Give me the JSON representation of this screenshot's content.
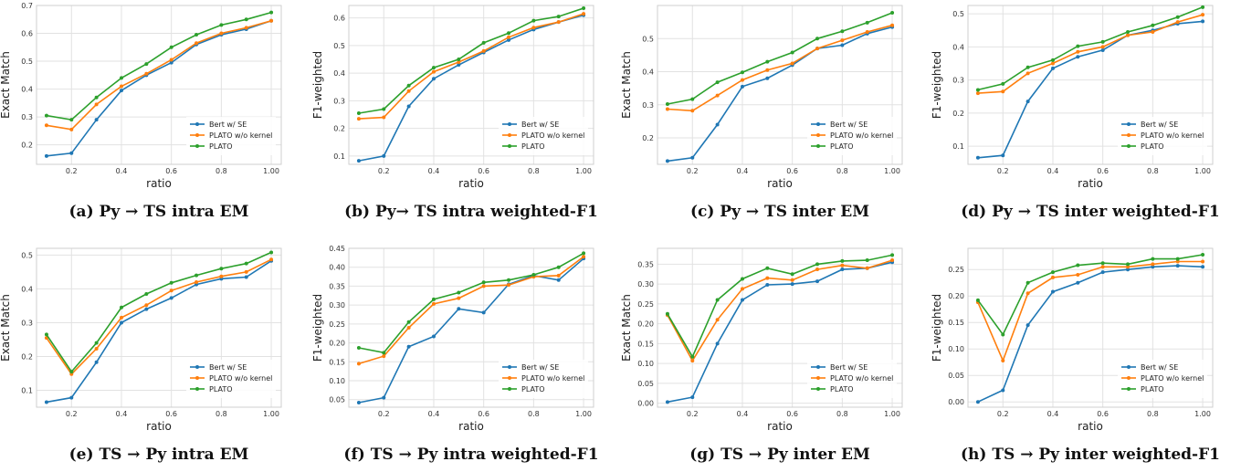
{
  "chart_data": [
    {
      "type": "line",
      "caption": "(a) Py → TS intra EM",
      "xlabel": "ratio",
      "ylabel": "Exact Match",
      "ylim": [
        0.13,
        0.7
      ],
      "yticks": [
        0.2,
        0.3,
        0.4,
        0.5,
        0.6,
        0.7
      ],
      "x": [
        0.1,
        0.2,
        0.3,
        0.4,
        0.5,
        0.6,
        0.7,
        0.8,
        0.9,
        1.0
      ],
      "series": [
        {
          "name": "Bert w/ SE",
          "color": "#1f77b4",
          "values": [
            0.16,
            0.17,
            0.29,
            0.395,
            0.45,
            0.495,
            0.56,
            0.595,
            0.615,
            0.645
          ]
        },
        {
          "name": "PLATO w/o kernel",
          "color": "#ff7f0e",
          "values": [
            0.27,
            0.255,
            0.345,
            0.41,
            0.455,
            0.505,
            0.565,
            0.6,
            0.62,
            0.645
          ]
        },
        {
          "name": "PLATO",
          "color": "#2ca02c",
          "values": [
            0.305,
            0.29,
            0.37,
            0.44,
            0.49,
            0.55,
            0.595,
            0.63,
            0.65,
            0.675
          ]
        }
      ],
      "legend": "lower-right",
      "grid": true
    },
    {
      "type": "line",
      "caption": "(b) Py→ TS intra weighted-F1",
      "xlabel": "ratio",
      "ylabel": "F1-weighted",
      "ylim": [
        0.07,
        0.645
      ],
      "yticks": [
        0.1,
        0.2,
        0.3,
        0.4,
        0.5,
        0.6
      ],
      "x": [
        0.1,
        0.2,
        0.3,
        0.4,
        0.5,
        0.6,
        0.7,
        0.8,
        0.9,
        1.0
      ],
      "series": [
        {
          "name": "Bert w/ SE",
          "color": "#1f77b4",
          "values": [
            0.083,
            0.1,
            0.28,
            0.38,
            0.43,
            0.475,
            0.52,
            0.558,
            0.585,
            0.61
          ]
        },
        {
          "name": "PLATO w/o kernel",
          "color": "#ff7f0e",
          "values": [
            0.235,
            0.24,
            0.335,
            0.405,
            0.44,
            0.48,
            0.53,
            0.565,
            0.585,
            0.615
          ]
        },
        {
          "name": "PLATO",
          "color": "#2ca02c",
          "values": [
            0.255,
            0.27,
            0.355,
            0.42,
            0.45,
            0.51,
            0.545,
            0.59,
            0.605,
            0.635
          ]
        }
      ],
      "legend": "lower-right",
      "grid": true
    },
    {
      "type": "line",
      "caption": "(c) Py → TS inter EM",
      "xlabel": "ratio",
      "ylabel": "Exact Match",
      "ylim": [
        0.12,
        0.6
      ],
      "yticks": [
        0.2,
        0.3,
        0.4,
        0.5
      ],
      "x": [
        0.1,
        0.2,
        0.3,
        0.4,
        0.5,
        0.6,
        0.7,
        0.8,
        0.9,
        1.0
      ],
      "series": [
        {
          "name": "Bert w/ SE",
          "color": "#1f77b4",
          "values": [
            0.13,
            0.14,
            0.24,
            0.355,
            0.38,
            0.42,
            0.47,
            0.48,
            0.515,
            0.535
          ]
        },
        {
          "name": "PLATO w/o kernel",
          "color": "#ff7f0e",
          "values": [
            0.287,
            0.282,
            0.328,
            0.375,
            0.405,
            0.425,
            0.47,
            0.495,
            0.52,
            0.54
          ]
        },
        {
          "name": "PLATO",
          "color": "#2ca02c",
          "values": [
            0.302,
            0.317,
            0.368,
            0.398,
            0.43,
            0.458,
            0.5,
            0.522,
            0.548,
            0.578
          ]
        }
      ],
      "legend": "lower-right",
      "grid": true
    },
    {
      "type": "line",
      "caption": "(d) Py → TS inter weighted-F1",
      "xlabel": "ratio",
      "ylabel": "F1-weighted",
      "ylim": [
        0.045,
        0.525
      ],
      "yticks": [
        0.1,
        0.2,
        0.3,
        0.4,
        0.5
      ],
      "x": [
        0.1,
        0.2,
        0.3,
        0.4,
        0.5,
        0.6,
        0.7,
        0.8,
        0.9,
        1.0
      ],
      "series": [
        {
          "name": "Bert w/ SE",
          "color": "#1f77b4",
          "values": [
            0.065,
            0.072,
            0.235,
            0.335,
            0.37,
            0.39,
            0.435,
            0.45,
            0.47,
            0.477
          ]
        },
        {
          "name": "PLATO w/o kernel",
          "color": "#ff7f0e",
          "values": [
            0.26,
            0.265,
            0.32,
            0.35,
            0.385,
            0.4,
            0.435,
            0.445,
            0.475,
            0.497
          ]
        },
        {
          "name": "PLATO",
          "color": "#2ca02c",
          "values": [
            0.27,
            0.288,
            0.338,
            0.36,
            0.402,
            0.415,
            0.445,
            0.465,
            0.49,
            0.52
          ]
        }
      ],
      "legend": "lower-right",
      "grid": true
    },
    {
      "type": "line",
      "caption": "(e) TS → Py intra EM",
      "xlabel": "ratio",
      "ylabel": "Exact Match",
      "ylim": [
        0.05,
        0.52
      ],
      "yticks": [
        0.1,
        0.2,
        0.3,
        0.4,
        0.5
      ],
      "x": [
        0.1,
        0.2,
        0.3,
        0.4,
        0.5,
        0.6,
        0.7,
        0.8,
        0.9,
        1.0
      ],
      "series": [
        {
          "name": "Bert w/ SE",
          "color": "#1f77b4",
          "values": [
            0.065,
            0.078,
            0.183,
            0.3,
            0.34,
            0.373,
            0.413,
            0.43,
            0.435,
            0.483
          ]
        },
        {
          "name": "PLATO w/o kernel",
          "color": "#ff7f0e",
          "values": [
            0.255,
            0.148,
            0.223,
            0.315,
            0.352,
            0.395,
            0.42,
            0.437,
            0.45,
            0.487
          ]
        },
        {
          "name": "PLATO",
          "color": "#2ca02c",
          "values": [
            0.265,
            0.155,
            0.24,
            0.345,
            0.385,
            0.418,
            0.44,
            0.46,
            0.475,
            0.508
          ]
        }
      ],
      "legend": "lower-right",
      "grid": true
    },
    {
      "type": "line",
      "caption": "(f) TS → Py intra weighted-F1",
      "xlabel": "ratio",
      "ylabel": "F1-weighted",
      "ylim": [
        0.03,
        0.45
      ],
      "yticks": [
        0.05,
        0.1,
        0.15,
        0.2,
        0.25,
        0.3,
        0.35,
        0.4,
        0.45
      ],
      "x": [
        0.1,
        0.2,
        0.3,
        0.4,
        0.5,
        0.6,
        0.7,
        0.8,
        0.9,
        1.0
      ],
      "series": [
        {
          "name": "Bert w/ SE",
          "color": "#1f77b4",
          "values": [
            0.042,
            0.055,
            0.19,
            0.217,
            0.29,
            0.28,
            0.355,
            0.378,
            0.366,
            0.423
          ]
        },
        {
          "name": "PLATO w/o kernel",
          "color": "#ff7f0e",
          "values": [
            0.145,
            0.165,
            0.24,
            0.303,
            0.318,
            0.35,
            0.353,
            0.375,
            0.378,
            0.428
          ]
        },
        {
          "name": "PLATO",
          "color": "#2ca02c",
          "values": [
            0.187,
            0.174,
            0.255,
            0.315,
            0.333,
            0.36,
            0.366,
            0.38,
            0.4,
            0.437
          ]
        }
      ],
      "legend": "lower-right",
      "grid": true
    },
    {
      "type": "line",
      "caption": "(g) TS → Py inter EM",
      "xlabel": "ratio",
      "ylabel": "Exact Match",
      "ylim": [
        -0.01,
        0.39
      ],
      "yticks": [
        0.0,
        0.05,
        0.1,
        0.15,
        0.2,
        0.25,
        0.3,
        0.35
      ],
      "x": [
        0.1,
        0.2,
        0.3,
        0.4,
        0.5,
        0.6,
        0.7,
        0.8,
        0.9,
        1.0
      ],
      "series": [
        {
          "name": "Bert w/ SE",
          "color": "#1f77b4",
          "values": [
            0.003,
            0.015,
            0.15,
            0.26,
            0.298,
            0.3,
            0.307,
            0.337,
            0.34,
            0.355
          ]
        },
        {
          "name": "PLATO w/o kernel",
          "color": "#ff7f0e",
          "values": [
            0.222,
            0.107,
            0.21,
            0.288,
            0.315,
            0.31,
            0.337,
            0.347,
            0.34,
            0.36
          ]
        },
        {
          "name": "PLATO",
          "color": "#2ca02c",
          "values": [
            0.225,
            0.117,
            0.26,
            0.313,
            0.34,
            0.325,
            0.35,
            0.358,
            0.36,
            0.373
          ]
        }
      ],
      "legend": "lower-right",
      "grid": true
    },
    {
      "type": "line",
      "caption": "(h) TS → Py inter weighted-F1",
      "xlabel": "ratio",
      "ylabel": "F1-weighted",
      "ylim": [
        -0.01,
        0.29
      ],
      "yticks": [
        0.0,
        0.05,
        0.1,
        0.15,
        0.2,
        0.25
      ],
      "x": [
        0.1,
        0.2,
        0.3,
        0.4,
        0.5,
        0.6,
        0.7,
        0.8,
        0.9,
        1.0
      ],
      "series": [
        {
          "name": "Bert w/ SE",
          "color": "#1f77b4",
          "values": [
            0.0,
            0.022,
            0.145,
            0.208,
            0.225,
            0.245,
            0.25,
            0.255,
            0.257,
            0.255
          ]
        },
        {
          "name": "PLATO w/o kernel",
          "color": "#ff7f0e",
          "values": [
            0.188,
            0.078,
            0.205,
            0.235,
            0.24,
            0.255,
            0.255,
            0.26,
            0.265,
            0.265
          ]
        },
        {
          "name": "PLATO",
          "color": "#2ca02c",
          "values": [
            0.192,
            0.127,
            0.225,
            0.245,
            0.258,
            0.262,
            0.26,
            0.27,
            0.27,
            0.278
          ]
        }
      ],
      "legend": "lower-right",
      "grid": true
    }
  ]
}
